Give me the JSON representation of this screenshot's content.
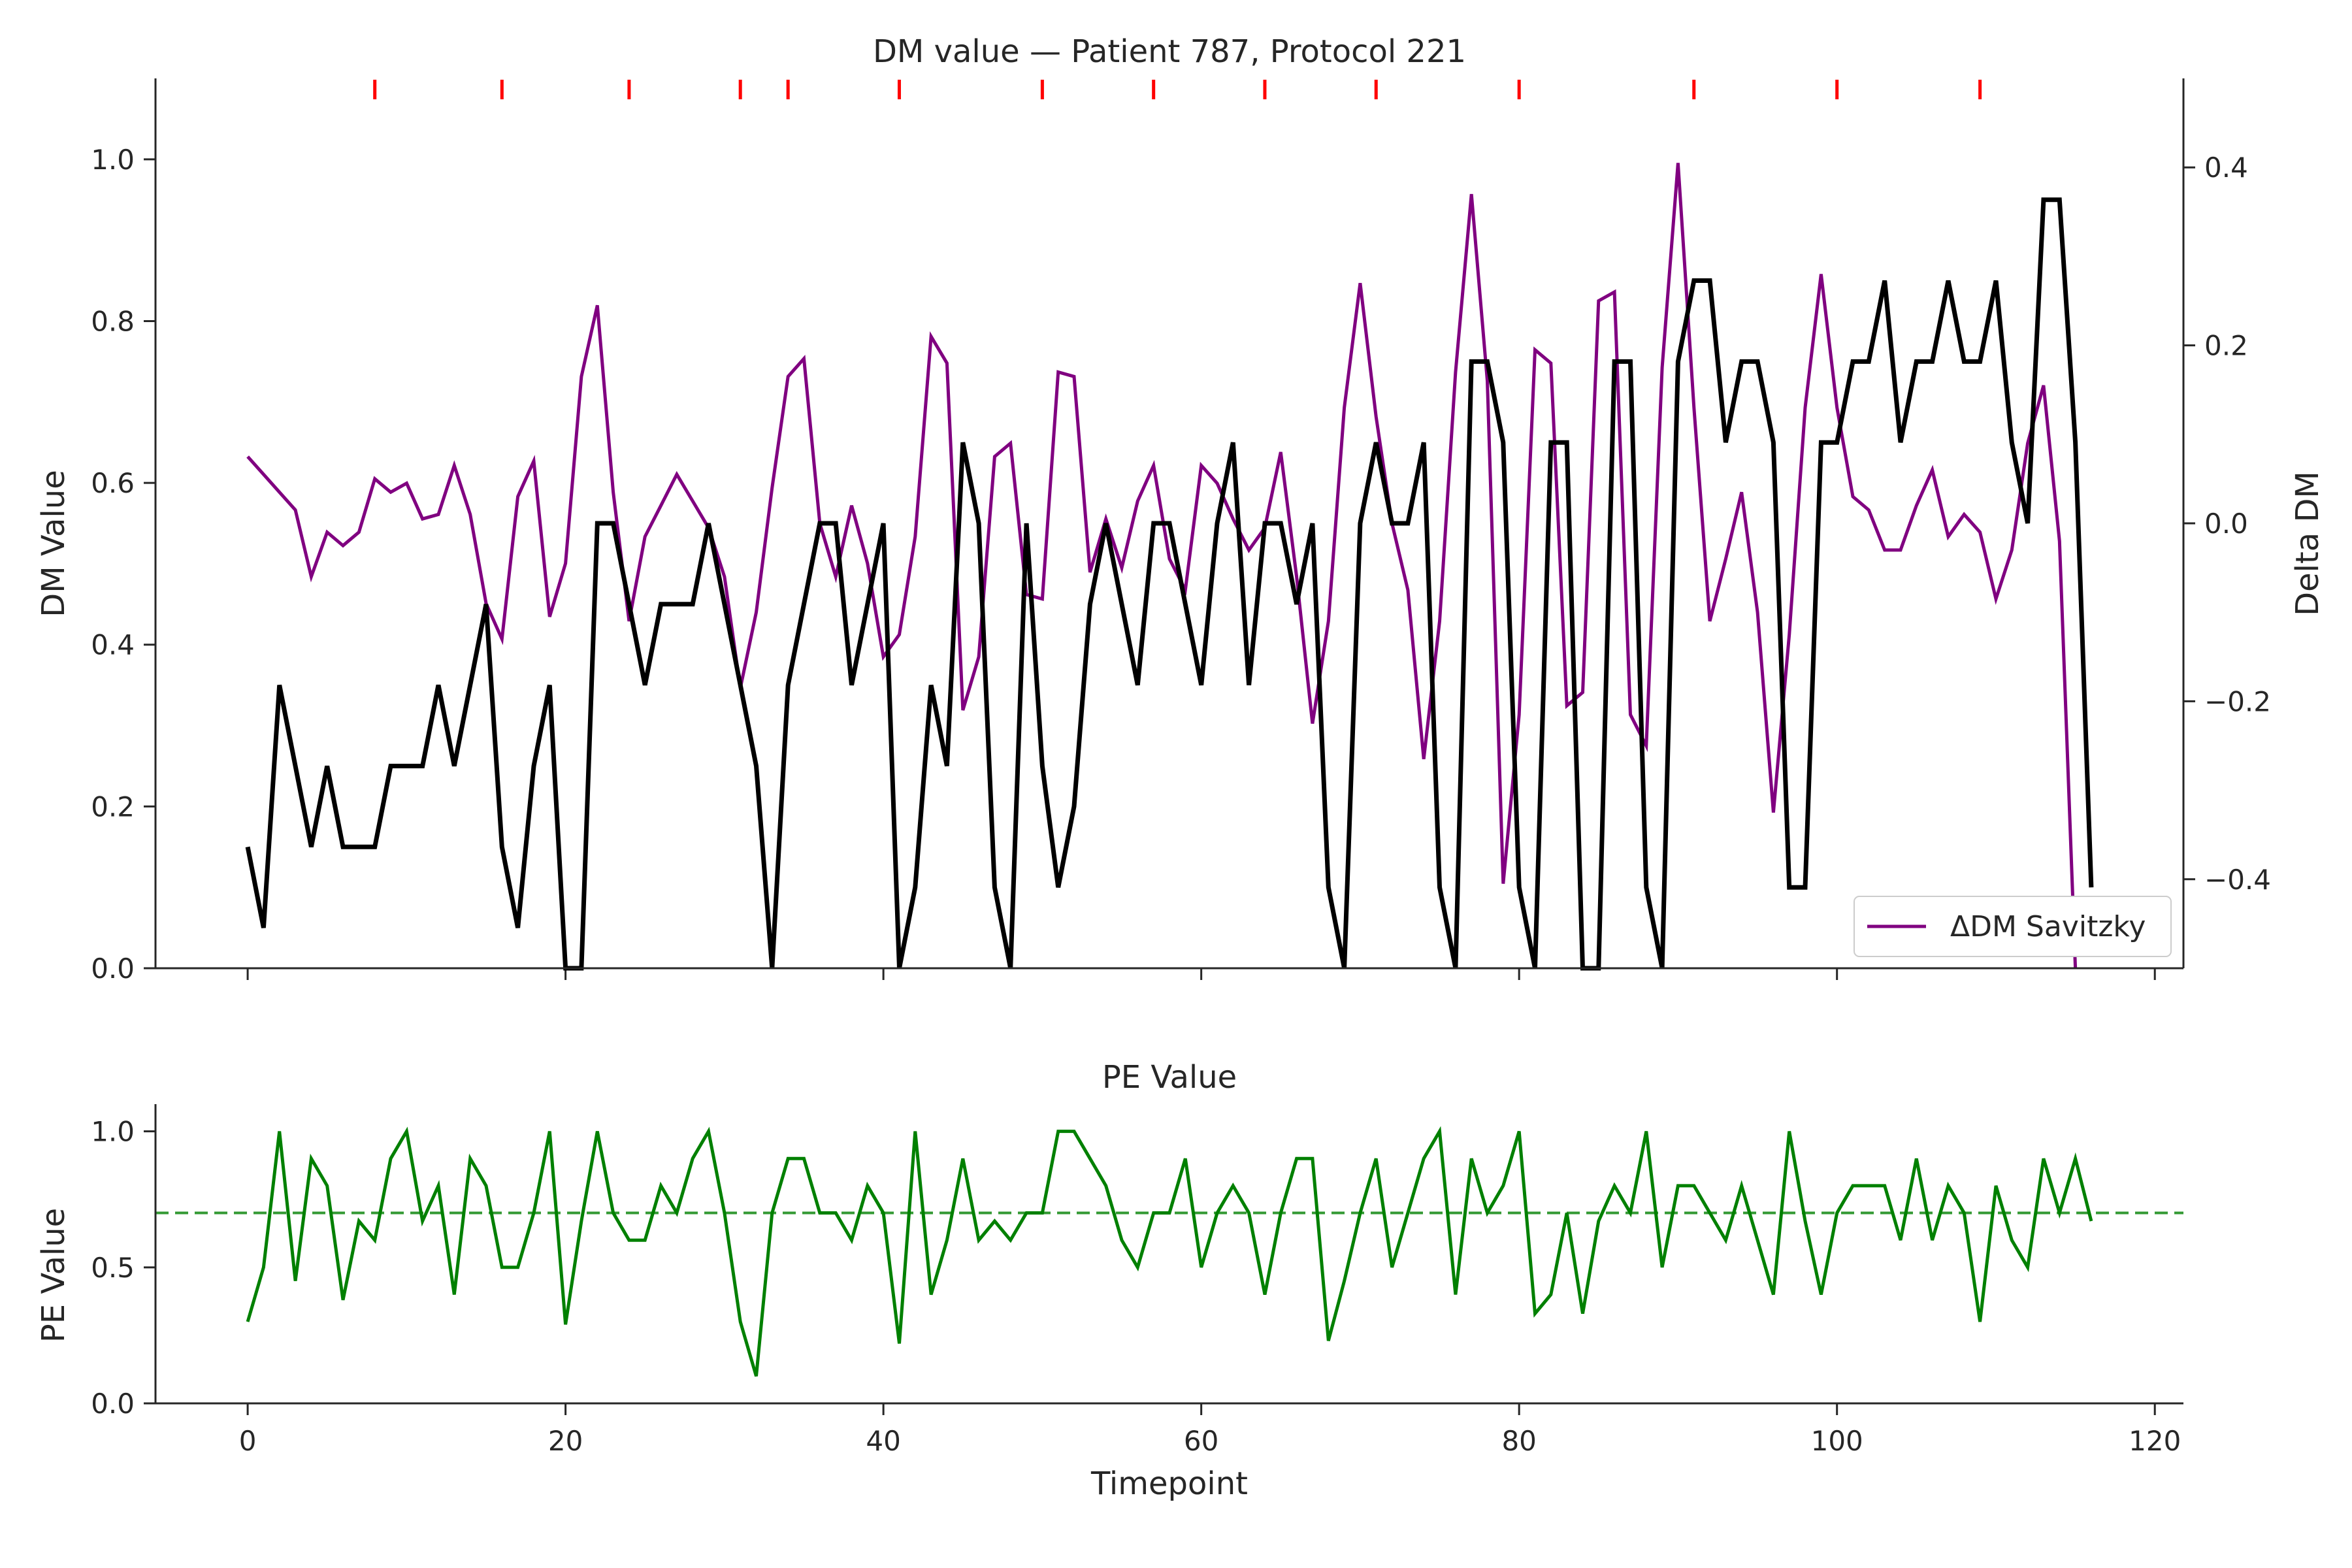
{
  "colors": {
    "dm": "#000000",
    "delta": "#800080",
    "pe": "#008000",
    "marker": "#ff0000",
    "axis": "#262626"
  },
  "chart_data": [
    {
      "id": "top",
      "type": "line",
      "title": "DM value — Patient 787, Protocol 221",
      "xlabel": "",
      "ylabel": "DM Value",
      "y2label": "Delta DM",
      "xlim": [
        -5.8,
        121.8
      ],
      "ylim": [
        0.0,
        1.1
      ],
      "y2lim": [
        -0.5,
        0.5
      ],
      "xticks": [
        0,
        20,
        40,
        60,
        80,
        100,
        120
      ],
      "yticks": [
        0.0,
        0.2,
        0.4,
        0.6,
        0.8,
        1.0
      ],
      "yticklabels": [
        "0.0",
        "0.2",
        "0.4",
        "0.6",
        "0.8",
        "1.0"
      ],
      "y2ticks": [
        -0.4,
        -0.2,
        0.0,
        0.2,
        0.4
      ],
      "y2ticklabels": [
        "−0.4",
        "−0.2",
        "0.0",
        "0.2",
        "0.4"
      ],
      "event_markers": [
        8,
        16,
        24,
        31,
        34,
        41,
        50,
        57,
        64,
        71,
        80,
        91,
        100,
        109
      ],
      "legend": {
        "position": "bottom-right",
        "entries": [
          "ΔDM Savitzky"
        ]
      },
      "grid": false,
      "series": [
        {
          "axis": "left",
          "color": "#000000",
          "values": [
            0.15,
            0.05,
            0.35,
            0.25,
            0.15,
            0.25,
            0.15,
            0.15,
            0.15,
            0.25,
            0.25,
            0.25,
            0.35,
            0.25,
            0.35,
            0.45,
            0.15,
            0.05,
            0.25,
            0.35,
            0.0,
            0.0,
            0.55,
            0.55,
            0.45,
            0.35,
            0.45,
            0.45,
            0.45,
            0.55,
            0.45,
            0.35,
            0.25,
            0.0,
            0.35,
            0.45,
            0.55,
            0.55,
            0.35,
            0.45,
            0.55,
            0.0,
            0.1,
            0.35,
            0.25,
            0.65,
            0.55,
            0.1,
            0.0,
            0.55,
            0.25,
            0.1,
            0.2,
            0.45,
            0.55,
            0.45,
            0.35,
            0.55,
            0.55,
            0.45,
            0.35,
            0.55,
            0.65,
            0.35,
            0.55,
            0.55,
            0.45,
            0.55,
            0.1,
            0.0,
            0.55,
            0.65,
            0.55,
            0.55,
            0.65,
            0.1,
            0.0,
            0.75,
            0.75,
            0.65,
            0.1,
            0.0,
            0.65,
            0.65,
            0.0,
            0.0,
            0.75,
            0.75,
            0.1,
            0.0,
            0.75,
            0.85,
            0.85,
            0.65,
            0.75,
            0.75,
            0.65,
            0.1,
            0.1,
            0.65,
            0.65,
            0.75,
            0.75,
            0.85,
            0.65,
            0.75,
            0.75,
            0.85,
            0.75,
            0.75,
            0.85,
            0.65,
            0.55,
            0.95,
            0.95,
            0.65,
            0.1
          ]
        },
        {
          "axis": "right",
          "name": "ΔDM Savitzky",
          "color": "#800080",
          "values": [
            0.075,
            0.055,
            0.035,
            0.015,
            -0.06,
            -0.01,
            -0.025,
            -0.01,
            0.05,
            0.035,
            0.045,
            0.005,
            0.01,
            0.065,
            0.01,
            -0.09,
            -0.13,
            0.03,
            0.07,
            -0.105,
            -0.045,
            0.165,
            0.245,
            0.035,
            -0.11,
            -0.015,
            0.02,
            0.055,
            0.025,
            -0.005,
            -0.06,
            -0.185,
            -0.1,
            0.04,
            0.165,
            0.185,
            0.0,
            -0.06,
            0.02,
            -0.045,
            -0.15,
            -0.125,
            -0.015,
            0.21,
            0.18,
            -0.21,
            -0.15,
            0.075,
            0.09,
            -0.08,
            -0.085,
            0.17,
            0.165,
            -0.055,
            0.005,
            -0.05,
            0.025,
            0.065,
            -0.04,
            -0.075,
            0.065,
            0.045,
            0.005,
            -0.03,
            -0.005,
            0.08,
            -0.06,
            -0.225,
            -0.11,
            0.13,
            0.27,
            0.12,
            0.0,
            -0.075,
            -0.265,
            -0.11,
            0.17,
            0.37,
            0.16,
            -0.405,
            -0.215,
            0.195,
            0.18,
            -0.205,
            -0.19,
            0.25,
            0.26,
            -0.215,
            -0.25,
            0.175,
            0.405,
            0.13,
            -0.11,
            -0.04,
            0.035,
            -0.1,
            -0.325,
            -0.125,
            0.13,
            0.28,
            0.13,
            0.03,
            0.015,
            -0.03,
            -0.03,
            0.02,
            0.06,
            -0.015,
            0.01,
            -0.01,
            -0.085,
            -0.03,
            0.09,
            0.155,
            -0.02,
            -0.5
          ]
        }
      ]
    },
    {
      "id": "bottom",
      "type": "line",
      "title": "PE Value",
      "xlabel": "Timepoint",
      "ylabel": "PE Value",
      "xlim": [
        -5.8,
        121.8
      ],
      "ylim": [
        0.0,
        1.1
      ],
      "xticks": [
        0,
        20,
        40,
        60,
        80,
        100,
        120
      ],
      "xticklabels": [
        "0",
        "20",
        "40",
        "60",
        "80",
        "100",
        "120"
      ],
      "yticks": [
        0.0,
        0.5,
        1.0
      ],
      "yticklabels": [
        "0.0",
        "0.5",
        "1.0"
      ],
      "threshold": 0.7,
      "grid": false,
      "series": [
        {
          "axis": "left",
          "color": "#008000",
          "values": [
            0.3,
            0.5,
            1.0,
            0.45,
            0.9,
            0.8,
            0.38,
            0.67,
            0.6,
            0.9,
            1.0,
            0.67,
            0.8,
            0.4,
            0.9,
            0.8,
            0.5,
            0.5,
            0.7,
            1.0,
            0.29,
            0.67,
            1.0,
            0.7,
            0.6,
            0.6,
            0.8,
            0.7,
            0.9,
            1.0,
            0.7,
            0.3,
            0.1,
            0.7,
            0.9,
            0.9,
            0.7,
            0.7,
            0.6,
            0.8,
            0.7,
            0.22,
            1.0,
            0.4,
            0.6,
            0.9,
            0.6,
            0.67,
            0.6,
            0.7,
            0.7,
            1.0,
            1.0,
            0.9,
            0.8,
            0.6,
            0.5,
            0.7,
            0.7,
            0.9,
            0.5,
            0.7,
            0.8,
            0.7,
            0.4,
            0.7,
            0.9,
            0.9,
            0.23,
            0.45,
            0.7,
            0.9,
            0.5,
            0.7,
            0.9,
            1.0,
            0.4,
            0.9,
            0.7,
            0.8,
            1.0,
            0.33,
            0.4,
            0.7,
            0.33,
            0.67,
            0.8,
            0.7,
            1.0,
            0.5,
            0.8,
            0.8,
            0.7,
            0.6,
            0.8,
            0.6,
            0.4,
            1.0,
            0.67,
            0.4,
            0.7,
            0.8,
            0.8,
            0.8,
            0.6,
            0.9,
            0.6,
            0.8,
            0.7,
            0.3,
            0.8,
            0.6,
            0.5,
            0.9,
            0.7,
            0.9,
            0.67
          ]
        }
      ]
    }
  ]
}
